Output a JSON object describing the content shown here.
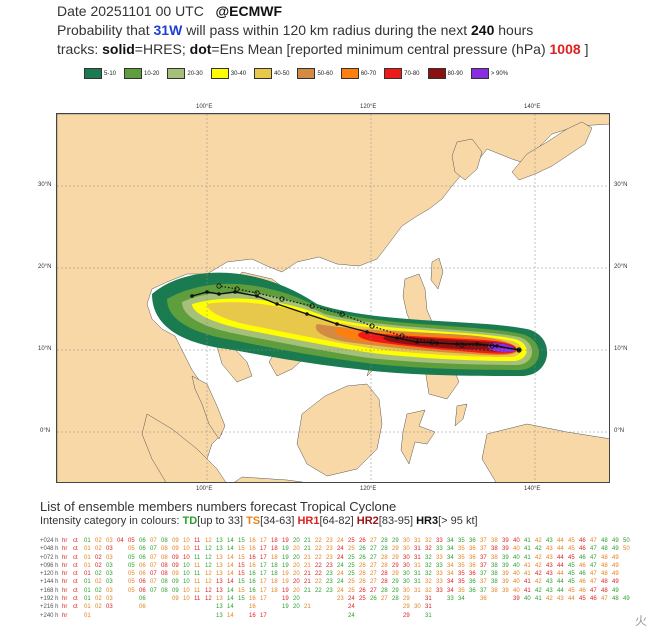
{
  "header": {
    "line1_date": "Date 20251101 00 UTC",
    "line1_src": "@ECMWF",
    "line2_a": "Probability that",
    "storm": "31W",
    "line2_b": "will pass within 120 km radius during the next",
    "hours": "240",
    "line2_c": "hours",
    "line3_a": "tracks:",
    "solid_lbl": "solid",
    "line3_b": "=HRES;",
    "dot_lbl": "dot",
    "line3_c": "=Ens Mean [reported minimum central pressure (hPa)",
    "pressure": "1008",
    "line3_d": "]"
  },
  "legend": [
    {
      "label": "5-10",
      "color": "#1a7a50"
    },
    {
      "label": "10-20",
      "color": "#5e9e3c"
    },
    {
      "label": "20-30",
      "color": "#a6c07a"
    },
    {
      "label": "30-40",
      "color": "#ffff00"
    },
    {
      "label": "40-50",
      "color": "#e8c84a"
    },
    {
      "label": "50-60",
      "color": "#d28a44"
    },
    {
      "label": "60-70",
      "color": "#ff7f0e"
    },
    {
      "label": "70-80",
      "color": "#ee1a1a"
    },
    {
      "label": "80-90",
      "color": "#8b1010"
    },
    {
      "label": "> 90%",
      "color": "#8b2be2"
    }
  ],
  "map": {
    "lon_top": [
      "100°E",
      "120°E",
      "140°E"
    ],
    "lon_bottom": [
      "100°E",
      "120°E",
      "140°E"
    ],
    "lat_left": [
      "30°N",
      "20°N",
      "10°N",
      "0°N"
    ],
    "lat_right": [
      "30°N",
      "20°N",
      "10°N",
      "0°N"
    ],
    "land_color": "#f9d8a8",
    "sea_color": "#ffffff"
  },
  "list": {
    "title": "List of ensemble members numbers forecast Tropical Cyclone",
    "sub_a": "Intensity category in colours:",
    "td": "TD",
    "td_range": "[up to 33]",
    "ts": "TS",
    "ts_range": "[34-63]",
    "hr1": "HR1",
    "hr1_range": "[64-82]",
    "hr2": "HR2",
    "hr2_range": "[83-95]",
    "hr3": "HR3",
    "hr3_range": "[> 95 kt]"
  },
  "members": [
    {
      "label": "+024 h",
      "cells": [
        "hr",
        "ct",
        "01",
        "02",
        "03",
        "04",
        "05",
        "06",
        "07",
        "08",
        "09",
        "10",
        "11",
        "12",
        "13",
        "14",
        "15",
        "16",
        "17",
        "18",
        "19",
        "20",
        "21",
        "22",
        "23",
        "24",
        "25",
        "26",
        "27",
        "28",
        "29",
        "30",
        "31",
        "32",
        "33",
        "34",
        "35",
        "36",
        "37",
        "38",
        "39",
        "40",
        "41",
        "42",
        "43",
        "44",
        "45",
        "46",
        "47",
        "48",
        "49",
        "50"
      ]
    },
    {
      "label": "+048 h",
      "cells": [
        "hr",
        "ct",
        "01",
        "02",
        "03",
        "",
        "05",
        "06",
        "07",
        "08",
        "09",
        "10",
        "11",
        "12",
        "13",
        "14",
        "15",
        "16",
        "17",
        "18",
        "19",
        "20",
        "21",
        "22",
        "23",
        "24",
        "25",
        "26",
        "27",
        "28",
        "29",
        "30",
        "31",
        "32",
        "33",
        "34",
        "35",
        "36",
        "37",
        "38",
        "39",
        "40",
        "41",
        "42",
        "43",
        "44",
        "45",
        "46",
        "47",
        "48",
        "49",
        "50"
      ]
    },
    {
      "label": "+072 h",
      "cells": [
        "hr",
        "ct",
        "01",
        "02",
        "03",
        "",
        "05",
        "06",
        "07",
        "08",
        "09",
        "10",
        "11",
        "12",
        "13",
        "14",
        "15",
        "16",
        "17",
        "18",
        "19",
        "20",
        "21",
        "22",
        "23",
        "24",
        "25",
        "26",
        "27",
        "28",
        "29",
        "30",
        "31",
        "32",
        "33",
        "34",
        "35",
        "36",
        "37",
        "38",
        "39",
        "40",
        "41",
        "42",
        "43",
        "44",
        "45",
        "46",
        "47",
        "48",
        "49"
      ]
    },
    {
      "label": "+096 h",
      "cells": [
        "hr",
        "ct",
        "01",
        "02",
        "03",
        "",
        "05",
        "06",
        "07",
        "08",
        "09",
        "10",
        "11",
        "12",
        "13",
        "14",
        "15",
        "16",
        "17",
        "18",
        "19",
        "20",
        "21",
        "22",
        "23",
        "24",
        "25",
        "26",
        "27",
        "28",
        "29",
        "30",
        "31",
        "32",
        "33",
        "34",
        "35",
        "36",
        "37",
        "38",
        "39",
        "40",
        "41",
        "42",
        "43",
        "44",
        "45",
        "46",
        "47",
        "48",
        "49"
      ]
    },
    {
      "label": "+120 h",
      "cells": [
        "hr",
        "ct",
        "01",
        "02",
        "03",
        "",
        "05",
        "06",
        "07",
        "08",
        "09",
        "10",
        "11",
        "12",
        "13",
        "14",
        "15",
        "16",
        "17",
        "18",
        "19",
        "20",
        "21",
        "22",
        "23",
        "24",
        "25",
        "26",
        "27",
        "28",
        "29",
        "30",
        "31",
        "32",
        "33",
        "34",
        "35",
        "36",
        "37",
        "38",
        "39",
        "40",
        "41",
        "42",
        "43",
        "44",
        "45",
        "46",
        "47",
        "48",
        "49"
      ]
    },
    {
      "label": "+144 h",
      "cells": [
        "hr",
        "ct",
        "01",
        "02",
        "03",
        "",
        "05",
        "06",
        "07",
        "08",
        "09",
        "10",
        "11",
        "12",
        "13",
        "14",
        "15",
        "16",
        "17",
        "18",
        "19",
        "20",
        "21",
        "22",
        "23",
        "24",
        "25",
        "26",
        "27",
        "28",
        "29",
        "30",
        "31",
        "32",
        "33",
        "34",
        "35",
        "36",
        "37",
        "38",
        "39",
        "40",
        "41",
        "42",
        "43",
        "44",
        "45",
        "46",
        "47",
        "48",
        "49"
      ]
    },
    {
      "label": "+168 h",
      "cells": [
        "hr",
        "ct",
        "01",
        "02",
        "03",
        "",
        "05",
        "06",
        "07",
        "08",
        "09",
        "10",
        "11",
        "12",
        "13",
        "14",
        "15",
        "16",
        "17",
        "18",
        "19",
        "20",
        "21",
        "22",
        "23",
        "24",
        "25",
        "26",
        "27",
        "28",
        "29",
        "30",
        "31",
        "32",
        "33",
        "34",
        "35",
        "36",
        "37",
        "38",
        "39",
        "40",
        "41",
        "42",
        "43",
        "44",
        "45",
        "46",
        "47",
        "48",
        "49"
      ]
    },
    {
      "label": "+192 h",
      "cells": [
        "hr",
        "ct",
        "01",
        "02",
        "03",
        "",
        "",
        "06",
        "",
        "",
        "09",
        "10",
        "11",
        "12",
        "13",
        "14",
        "15",
        "16",
        "17",
        "",
        "19",
        "20",
        "",
        "",
        "",
        "23",
        "24",
        "25",
        "26",
        "27",
        "28",
        "29",
        "",
        "31",
        "",
        "33",
        "34",
        "",
        "36",
        "",
        "",
        "39",
        "40",
        "41",
        "42",
        "43",
        "44",
        "45",
        "46",
        "47",
        "48",
        "49"
      ]
    },
    {
      "label": "+216 h",
      "cells": [
        "hr",
        "ct",
        "01",
        "02",
        "03",
        "",
        "",
        "06",
        "",
        "",
        "",
        "",
        "",
        "",
        "13",
        "14",
        "",
        "16",
        "",
        "",
        "19",
        "20",
        "21",
        "",
        "",
        "",
        "24",
        "",
        "",
        "",
        "",
        "29",
        "30",
        "31"
      ]
    },
    {
      "label": "+240 h",
      "cells": [
        "hr",
        "",
        "01",
        "",
        "",
        "",
        "",
        "",
        "",
        "",
        "",
        "",
        "",
        "",
        "13",
        "14",
        "",
        "16",
        "17",
        "",
        "",
        "",
        "",
        "",
        "",
        "",
        "24",
        "",
        "",
        "",
        "",
        "29",
        "",
        "31"
      ]
    }
  ],
  "watermark": "火"
}
